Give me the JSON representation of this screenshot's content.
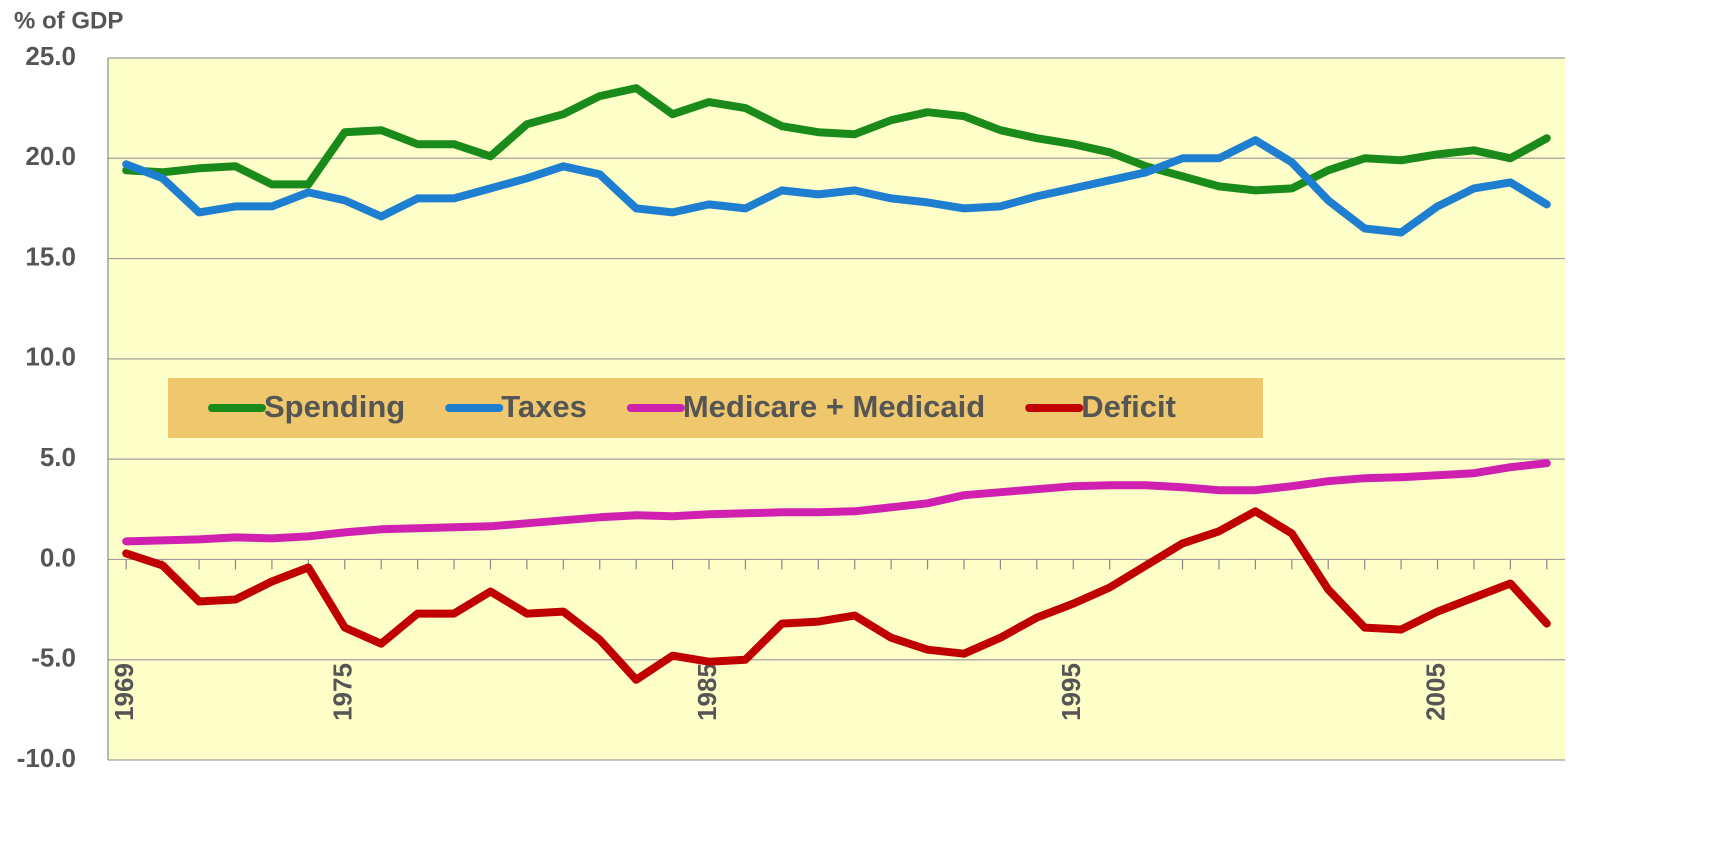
{
  "chart_data": {
    "type": "line",
    "y_label": "% of GDP",
    "x": [
      1969,
      1970,
      1971,
      1972,
      1973,
      1974,
      1975,
      1976,
      1977,
      1978,
      1979,
      1980,
      1981,
      1982,
      1983,
      1984,
      1985,
      1986,
      1987,
      1988,
      1989,
      1990,
      1991,
      1992,
      1993,
      1994,
      1995,
      1996,
      1997,
      1998,
      1999,
      2000,
      2001,
      2002,
      2003,
      2004,
      2005,
      2006,
      2007,
      2008
    ],
    "xlim": [
      1968.5,
      2008.5
    ],
    "xticks": [
      1969,
      1975,
      1985,
      1995,
      2005
    ],
    "ylim": [
      -10,
      25
    ],
    "yticks": [
      {
        "value": -10,
        "label": "-10.0"
      },
      {
        "value": -5,
        "label": "-5.0"
      },
      {
        "value": 0,
        "label": "0.0"
      },
      {
        "value": 5,
        "label": "5.0"
      },
      {
        "value": 10,
        "label": "10.0"
      },
      {
        "value": 15,
        "label": "15.0"
      },
      {
        "value": 20,
        "label": "20.0"
      },
      {
        "value": 25,
        "label": "25.0"
      }
    ],
    "grid": true,
    "legend": "center",
    "series": [
      {
        "name": "Spending",
        "color": "#1a8a1a",
        "values": [
          19.4,
          19.3,
          19.5,
          19.6,
          18.7,
          18.7,
          21.3,
          21.4,
          20.7,
          20.7,
          20.1,
          21.7,
          22.2,
          23.1,
          23.5,
          22.2,
          22.8,
          22.5,
          21.6,
          21.3,
          21.2,
          21.9,
          22.3,
          22.1,
          21.4,
          21.0,
          20.7,
          20.3,
          19.6,
          19.1,
          18.6,
          18.4,
          18.5,
          19.4,
          20.0,
          19.9,
          20.2,
          20.4,
          20.0,
          21.0
        ]
      },
      {
        "name": "Taxes",
        "color": "#1e7fd0",
        "values": [
          19.7,
          19.0,
          17.3,
          17.6,
          17.6,
          18.3,
          17.9,
          17.1,
          18.0,
          18.0,
          18.5,
          19.0,
          19.6,
          19.2,
          17.5,
          17.3,
          17.7,
          17.5,
          18.4,
          18.2,
          18.4,
          18.0,
          17.8,
          17.5,
          17.6,
          18.1,
          18.5,
          18.9,
          19.3,
          20.0,
          20.0,
          20.9,
          19.8,
          17.9,
          16.5,
          16.3,
          17.6,
          18.5,
          18.8,
          17.7
        ]
      },
      {
        "name": "Medicare + Medicaid",
        "color": "#d020b0",
        "values": [
          0.9,
          0.95,
          1.0,
          1.1,
          1.05,
          1.15,
          1.35,
          1.5,
          1.55,
          1.6,
          1.65,
          1.8,
          1.95,
          2.1,
          2.2,
          2.15,
          2.25,
          2.3,
          2.35,
          2.35,
          2.4,
          2.6,
          2.8,
          3.2,
          3.35,
          3.5,
          3.65,
          3.7,
          3.7,
          3.6,
          3.45,
          3.45,
          3.65,
          3.9,
          4.05,
          4.1,
          4.2,
          4.3,
          4.6,
          4.8
        ]
      },
      {
        "name": "Deficit",
        "color": "#c00000",
        "values": [
          0.3,
          -0.3,
          -2.1,
          -2.0,
          -1.1,
          -0.4,
          -3.4,
          -4.2,
          -2.7,
          -2.7,
          -1.6,
          -2.7,
          -2.6,
          -4.0,
          -6.0,
          -4.8,
          -5.1,
          -5.0,
          -3.2,
          -3.1,
          -2.8,
          -3.9,
          -4.5,
          -4.7,
          -3.9,
          -2.9,
          -2.2,
          -1.4,
          -0.3,
          0.8,
          1.4,
          2.4,
          1.3,
          -1.5,
          -3.4,
          -3.5,
          -2.6,
          -1.9,
          -1.2,
          -3.2
        ]
      }
    ]
  }
}
